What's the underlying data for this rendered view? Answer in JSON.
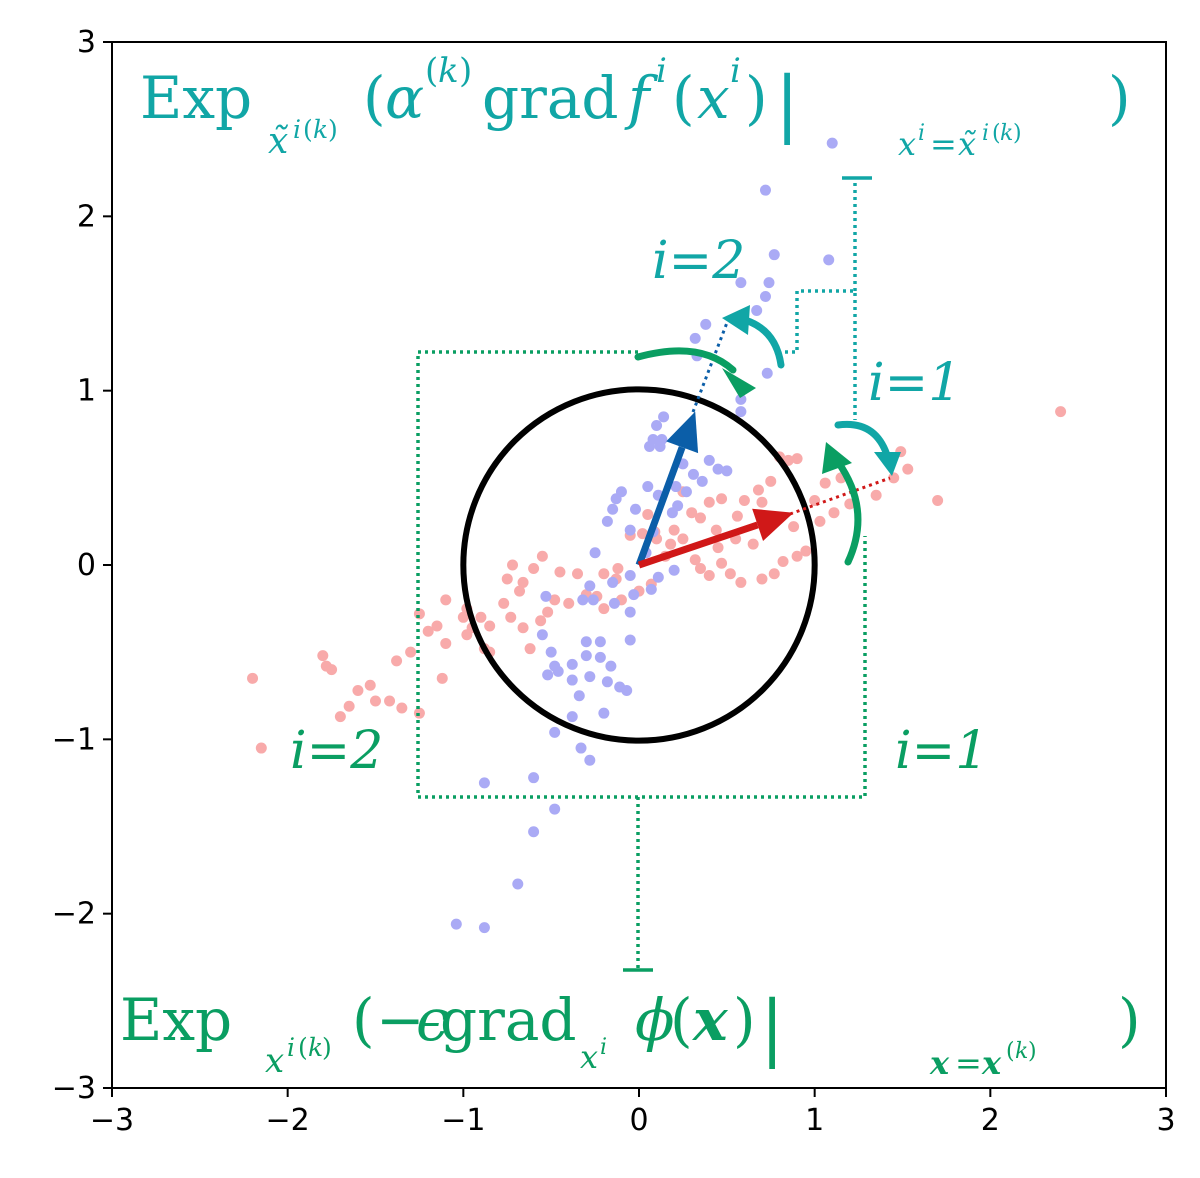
{
  "chart_data": {
    "type": "scatter",
    "title": "",
    "xlabel": "",
    "ylabel": "",
    "xlim": [
      -3,
      3
    ],
    "ylim": [
      -3,
      3
    ],
    "xticks": [
      -3,
      -2,
      -1,
      0,
      1,
      2,
      3
    ],
    "yticks": [
      -3,
      -2,
      -1,
      0,
      1,
      2,
      3
    ],
    "xtick_labels": [
      "−3",
      "−2",
      "−1",
      "0",
      "1",
      "2",
      "3"
    ],
    "ytick_labels": [
      "−3",
      "−2",
      "−1",
      "0",
      "1",
      "2",
      "3"
    ],
    "grid": false,
    "colors": {
      "blue_points": "#aaaaf5",
      "red_points": "#f8aaaa",
      "teal": "#11a6a6",
      "green": "#0a9e62",
      "arrow_blue": "#0b5ea8",
      "arrow_red": "#d01818",
      "circle": "#000000"
    },
    "series": [
      {
        "points": [
          [
            1.1,
            2.42
          ],
          [
            0.72,
            2.15
          ],
          [
            0.77,
            1.78
          ],
          [
            1.08,
            1.75
          ],
          [
            0.58,
            1.62
          ],
          [
            0.74,
            1.62
          ],
          [
            0.72,
            1.54
          ],
          [
            0.67,
            1.46
          ],
          [
            0.38,
            1.38
          ],
          [
            0.32,
            1.3
          ],
          [
            0.33,
            1.2
          ],
          [
            0.73,
            1.1
          ],
          [
            0.58,
            0.95
          ],
          [
            0.58,
            0.88
          ],
          [
            0.14,
            0.85
          ],
          [
            0.1,
            0.8
          ],
          [
            0.13,
            0.72
          ],
          [
            0.08,
            0.72
          ],
          [
            0.12,
            0.68
          ],
          [
            0.06,
            0.68
          ],
          [
            0.4,
            0.6
          ],
          [
            0.25,
            0.58
          ],
          [
            0.31,
            0.52
          ],
          [
            0.36,
            0.48
          ],
          [
            0.21,
            0.45
          ],
          [
            0.45,
            0.55
          ],
          [
            0.5,
            0.54
          ],
          [
            0.05,
            0.45
          ],
          [
            0.11,
            0.4
          ],
          [
            0.27,
            0.42
          ],
          [
            -0.1,
            0.42
          ],
          [
            -0.13,
            0.38
          ],
          [
            0.22,
            0.34
          ],
          [
            0.19,
            0.3
          ],
          [
            -0.02,
            0.32
          ],
          [
            -0.15,
            0.32
          ],
          [
            -0.18,
            0.25
          ],
          [
            0.08,
            0.19
          ],
          [
            -0.05,
            0.2
          ],
          [
            0.04,
            0.07
          ],
          [
            -0.25,
            0.07
          ],
          [
            0.2,
            -0.03
          ],
          [
            0.11,
            -0.07
          ],
          [
            -0.05,
            -0.06
          ],
          [
            -0.15,
            -0.1
          ],
          [
            0.07,
            -0.14
          ],
          [
            -0.28,
            -0.12
          ],
          [
            -0.03,
            -0.17
          ],
          [
            -0.14,
            -0.22
          ],
          [
            -0.26,
            -0.2
          ],
          [
            -0.32,
            -0.2
          ],
          [
            -0.53,
            -0.18
          ],
          [
            -0.05,
            -0.27
          ],
          [
            -0.55,
            -0.4
          ],
          [
            -0.3,
            -0.44
          ],
          [
            -0.22,
            -0.44
          ],
          [
            -0.05,
            -0.43
          ],
          [
            -0.5,
            -0.5
          ],
          [
            -0.3,
            -0.52
          ],
          [
            -0.22,
            -0.53
          ],
          [
            -0.38,
            -0.57
          ],
          [
            -0.48,
            -0.58
          ],
          [
            -0.46,
            -0.61
          ],
          [
            -0.16,
            -0.58
          ],
          [
            -0.28,
            -0.64
          ],
          [
            -0.52,
            -0.63
          ],
          [
            -0.38,
            -0.66
          ],
          [
            -0.18,
            -0.67
          ],
          [
            -0.11,
            -0.7
          ],
          [
            -0.07,
            -0.72
          ],
          [
            -0.34,
            -0.75
          ],
          [
            -0.2,
            -0.85
          ],
          [
            -0.38,
            -0.87
          ],
          [
            -0.48,
            -0.96
          ],
          [
            -0.33,
            -1.05
          ],
          [
            -0.28,
            -1.12
          ],
          [
            -0.6,
            -1.22
          ],
          [
            -0.88,
            -1.25
          ],
          [
            -0.48,
            -1.4
          ],
          [
            -0.6,
            -1.53
          ],
          [
            -0.69,
            -1.83
          ],
          [
            -1.04,
            -2.06
          ],
          [
            -0.88,
            -2.08
          ]
        ],
        "color": "#aaaaf5"
      },
      {
        "points": [
          [
            2.4,
            0.88
          ],
          [
            1.49,
            0.65
          ],
          [
            1.53,
            0.55
          ],
          [
            1.7,
            0.37
          ],
          [
            1.45,
            0.5
          ],
          [
            1.35,
            0.4
          ],
          [
            1.15,
            0.5
          ],
          [
            1.06,
            0.47
          ],
          [
            1.0,
            0.37
          ],
          [
            0.9,
            0.61
          ],
          [
            0.85,
            0.6
          ],
          [
            0.8,
            0.62
          ],
          [
            0.75,
            0.48
          ],
          [
            0.68,
            0.43
          ],
          [
            0.7,
            0.36
          ],
          [
            0.6,
            0.37
          ],
          [
            0.56,
            0.28
          ],
          [
            0.47,
            0.38
          ],
          [
            0.4,
            0.36
          ],
          [
            0.3,
            0.3
          ],
          [
            0.44,
            0.2
          ],
          [
            0.35,
            0.27
          ],
          [
            0.25,
            0.15
          ],
          [
            0.2,
            0.2
          ],
          [
            0.09,
            0.19
          ],
          [
            0.05,
            0.29
          ],
          [
            0.88,
            0.22
          ],
          [
            1.03,
            0.25
          ],
          [
            1.11,
            0.3
          ],
          [
            1.2,
            0.35
          ],
          [
            0.95,
            0.08
          ],
          [
            0.9,
            0.05
          ],
          [
            0.65,
            0.12
          ],
          [
            0.55,
            0.15
          ],
          [
            0.45,
            0.1
          ],
          [
            0.82,
            0.02
          ],
          [
            0.77,
            -0.05
          ],
          [
            0.7,
            -0.08
          ],
          [
            0.58,
            -0.1
          ],
          [
            0.52,
            -0.05
          ],
          [
            0.47,
            0.01
          ],
          [
            0.4,
            -0.06
          ],
          [
            0.32,
            0.03
          ],
          [
            0.18,
            0.12
          ],
          [
            0.1,
            0.15
          ],
          [
            0.02,
            0.18
          ],
          [
            -0.05,
            0.17
          ],
          [
            -0.12,
            -0.02
          ],
          [
            -0.2,
            -0.05
          ],
          [
            -0.24,
            -0.18
          ],
          [
            -0.35,
            -0.05
          ],
          [
            -0.45,
            -0.04
          ],
          [
            -0.55,
            0.05
          ],
          [
            -0.6,
            -0.02
          ],
          [
            -0.66,
            -0.1
          ],
          [
            -0.75,
            -0.08
          ],
          [
            -0.68,
            -0.15
          ],
          [
            -0.48,
            -0.2
          ],
          [
            -0.52,
            -0.27
          ],
          [
            -0.56,
            -0.32
          ],
          [
            -0.4,
            -0.22
          ],
          [
            -0.3,
            -0.17
          ],
          [
            -0.2,
            -0.25
          ],
          [
            -0.1,
            -0.2
          ],
          [
            0.0,
            -0.15
          ],
          [
            0.07,
            -0.11
          ],
          [
            -0.13,
            -0.08
          ],
          [
            -0.72,
            0.0
          ],
          [
            -0.77,
            -0.22
          ],
          [
            -0.66,
            -0.36
          ],
          [
            -0.73,
            -0.3
          ],
          [
            -0.85,
            -0.35
          ],
          [
            -0.9,
            -0.3
          ],
          [
            -0.98,
            -0.25
          ],
          [
            -1.1,
            -0.2
          ],
          [
            -0.98,
            -0.4
          ],
          [
            -0.88,
            -0.48
          ],
          [
            -1.1,
            -0.45
          ],
          [
            -1.15,
            -0.35
          ],
          [
            -1.2,
            -0.38
          ],
          [
            -1.25,
            -0.28
          ],
          [
            -1.12,
            -0.65
          ],
          [
            -1.3,
            -0.5
          ],
          [
            -1.38,
            -0.55
          ],
          [
            -1.53,
            -0.69
          ],
          [
            -1.65,
            -0.81
          ],
          [
            -1.7,
            -0.87
          ],
          [
            -1.75,
            -0.6
          ],
          [
            -1.8,
            -0.52
          ],
          [
            -1.78,
            -0.58
          ],
          [
            -2.2,
            -0.65
          ],
          [
            -2.15,
            -1.05
          ],
          [
            -1.5,
            -0.78
          ],
          [
            -1.6,
            -0.72
          ],
          [
            -1.42,
            -0.78
          ],
          [
            -1.35,
            -0.82
          ],
          [
            -1.25,
            -0.85
          ],
          [
            -1.0,
            -0.3
          ],
          [
            -0.95,
            -0.36
          ],
          [
            -0.85,
            -0.5
          ],
          [
            -0.62,
            -0.48
          ],
          [
            0.25,
            0.42
          ],
          [
            0.15,
            0.05
          ],
          [
            0.35,
            -0.02
          ]
        ],
        "color": "#f8aaaa"
      }
    ],
    "unit_circle": {
      "center": [
        0,
        0
      ],
      "radius": 1
    },
    "vectors": [
      {
        "from": [
          0,
          0
        ],
        "to": [
          0.32,
          0.88
        ],
        "color": "#0b5ea8"
      },
      {
        "from": [
          0,
          0
        ],
        "to": [
          0.88,
          0.3
        ],
        "color": "#d01818"
      }
    ],
    "annotations": {
      "top_formula": {
        "text": "Exp_{x̃^{i(k)}}(α^{(k)} grad f^i(x^i)|_{x^i = x̃^{i(k)}})",
        "color": "#11a6a6"
      },
      "bottom_formula": {
        "text": "Exp_{x^{i(k)}}(−ε grad_{x^i} φ(x)|_{x = x^{(k)}})",
        "color": "#0a9e62"
      },
      "teal_i2": "i=2",
      "teal_i1": "i=1",
      "green_i2": "i=2",
      "green_i1": "i=1"
    }
  }
}
